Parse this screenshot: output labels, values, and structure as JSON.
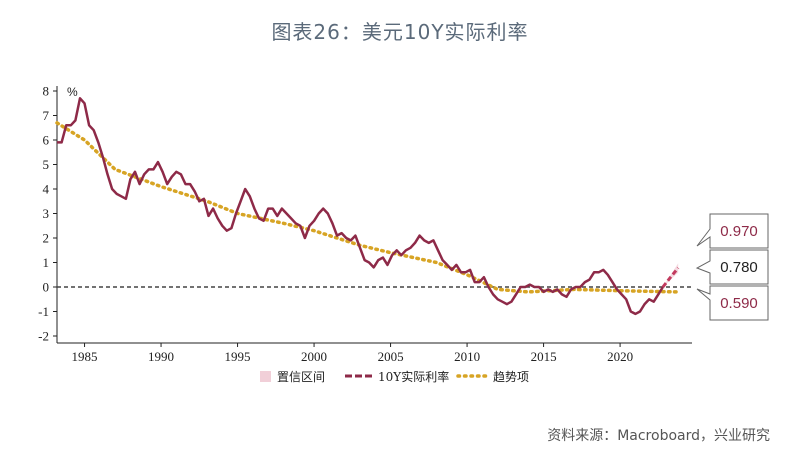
{
  "title": "图表26：美元10Y实际利率",
  "source": "资料来源：Macroboard，兴业研究",
  "colors": {
    "line": "#8e2a48",
    "trend": "#d7a424",
    "band": "#f1cfd8",
    "zero": "#444444"
  },
  "chart_data": {
    "type": "line",
    "ylabel": "%",
    "ylim": [
      -2,
      8
    ],
    "xlim": [
      1983.2,
      2024.7
    ],
    "y_ticks": [
      "-2",
      "-1",
      "0",
      "1",
      "2",
      "3",
      "4",
      "5",
      "6",
      "7",
      "8"
    ],
    "x_ticks": [
      "1985",
      "1990",
      "1995",
      "2000",
      "2005",
      "2010",
      "2015",
      "2020"
    ],
    "legend": [
      "置信区间",
      "10Y实际利率",
      "趋势项"
    ],
    "callouts": [
      "0.970",
      "0.780",
      "0.590"
    ],
    "series": [
      {
        "name": "10Y实际利率",
        "x": [
          1983.2,
          1983.5,
          1983.8,
          1984.1,
          1984.4,
          1984.7,
          1985.0,
          1985.3,
          1985.6,
          1985.9,
          1986.2,
          1986.5,
          1986.8,
          1987.1,
          1987.4,
          1987.7,
          1988.0,
          1988.3,
          1988.6,
          1988.9,
          1989.2,
          1989.5,
          1989.8,
          1990.1,
          1990.4,
          1990.7,
          1991.0,
          1991.3,
          1991.6,
          1991.9,
          1992.2,
          1992.5,
          1992.8,
          1993.1,
          1993.4,
          1993.7,
          1994.0,
          1994.3,
          1994.6,
          1994.9,
          1995.2,
          1995.5,
          1995.8,
          1996.1,
          1996.4,
          1996.7,
          1997.0,
          1997.3,
          1997.6,
          1997.9,
          1998.2,
          1998.5,
          1998.8,
          1999.1,
          1999.4,
          1999.7,
          2000.0,
          2000.3,
          2000.6,
          2000.9,
          2001.2,
          2001.5,
          2001.8,
          2002.1,
          2002.4,
          2002.7,
          2003.0,
          2003.3,
          2003.6,
          2003.9,
          2004.2,
          2004.5,
          2004.8,
          2005.1,
          2005.4,
          2005.7,
          2006.0,
          2006.3,
          2006.6,
          2006.9,
          2007.2,
          2007.5,
          2007.8,
          2008.1,
          2008.4,
          2008.7,
          2009.0,
          2009.3,
          2009.6,
          2009.9,
          2010.2,
          2010.5,
          2010.8,
          2011.1,
          2011.4,
          2011.7,
          2012.0,
          2012.3,
          2012.6,
          2012.9,
          2013.2,
          2013.5,
          2013.8,
          2014.1,
          2014.4,
          2014.7,
          2015.0,
          2015.3,
          2015.6,
          2015.9,
          2016.2,
          2016.5,
          2016.8,
          2017.1,
          2017.4,
          2017.7,
          2018.0,
          2018.3,
          2018.6,
          2018.9,
          2019.2,
          2019.5,
          2019.8,
          2020.1,
          2020.4,
          2020.7,
          2021.0,
          2021.3,
          2021.6,
          2021.9,
          2022.2,
          2022.5,
          2022.8
        ],
        "y": [
          5.9,
          5.9,
          6.6,
          6.6,
          6.8,
          7.7,
          7.5,
          6.6,
          6.4,
          5.9,
          5.3,
          4.6,
          4.0,
          3.8,
          3.7,
          3.6,
          4.4,
          4.7,
          4.2,
          4.6,
          4.8,
          4.8,
          5.1,
          4.7,
          4.2,
          4.5,
          4.7,
          4.6,
          4.2,
          4.2,
          3.9,
          3.5,
          3.6,
          2.9,
          3.2,
          2.8,
          2.5,
          2.3,
          2.4,
          3.0,
          3.5,
          4.0,
          3.7,
          3.2,
          2.8,
          2.7,
          3.2,
          3.2,
          2.9,
          3.2,
          3.0,
          2.8,
          2.6,
          2.5,
          2.0,
          2.5,
          2.7,
          3.0,
          3.2,
          3.0,
          2.6,
          2.1,
          2.2,
          2.0,
          1.9,
          2.1,
          1.6,
          1.1,
          1.0,
          0.8,
          1.1,
          1.2,
          0.9,
          1.3,
          1.5,
          1.3,
          1.5,
          1.6,
          1.8,
          2.1,
          1.9,
          1.8,
          1.9,
          1.5,
          1.1,
          0.9,
          0.7,
          0.9,
          0.6,
          0.6,
          0.7,
          0.2,
          0.2,
          0.4,
          0.0,
          -0.3,
          -0.5,
          -0.6,
          -0.7,
          -0.6,
          -0.3,
          0.0,
          0.0,
          0.1,
          0.0,
          0.0,
          -0.2,
          -0.1,
          -0.2,
          -0.1,
          -0.3,
          -0.4,
          -0.1,
          0.0,
          0.0,
          0.2,
          0.3,
          0.6,
          0.6,
          0.7,
          0.5,
          0.2,
          -0.1,
          -0.3,
          -0.5,
          -1.0,
          -1.1,
          -1.0,
          -0.7,
          -0.5,
          -0.6,
          -0.3,
          0.0
        ]
      },
      {
        "name": "10Y实际利率 (预测)",
        "x": [
          2022.8,
          2023.3,
          2023.8
        ],
        "y": [
          0.0,
          0.4,
          0.78
        ]
      },
      {
        "name": "趋势项",
        "x": [
          1983.2,
          1985,
          1987,
          1990,
          1993,
          1995,
          1998,
          2000,
          2003,
          2005,
          2008,
          2010,
          2012,
          2014,
          2017,
          2020,
          2023.8
        ],
        "y": [
          6.7,
          6.0,
          4.8,
          4.1,
          3.5,
          3.0,
          2.6,
          2.3,
          1.7,
          1.4,
          1.0,
          0.5,
          -0.1,
          -0.2,
          -0.1,
          -0.15,
          -0.2
        ]
      }
    ],
    "band": {
      "x": [
        2022.8,
        2023.8
      ],
      "lower": [
        0.0,
        0.59
      ],
      "upper": [
        0.0,
        0.97
      ]
    }
  }
}
